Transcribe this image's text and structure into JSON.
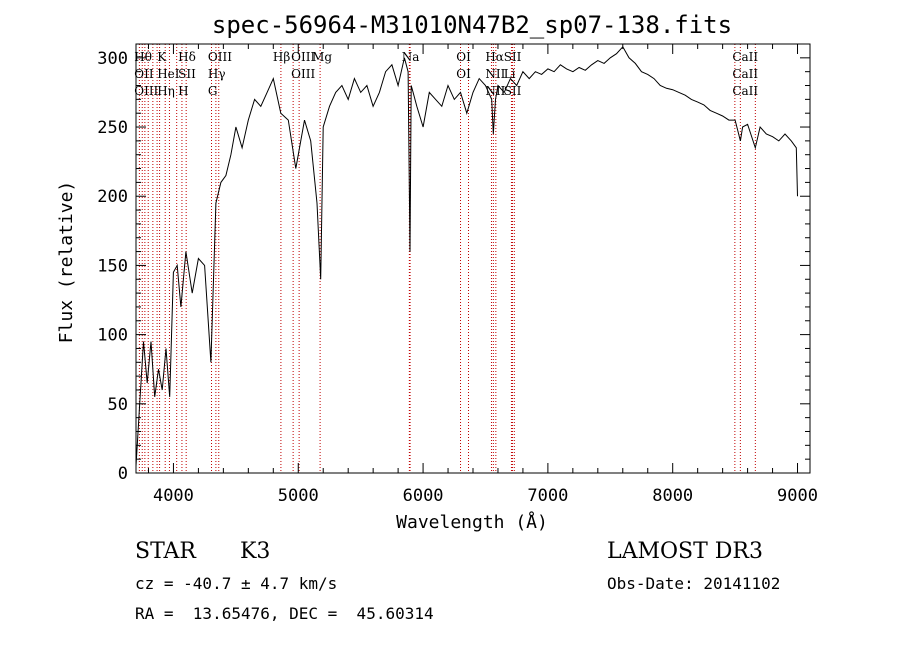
{
  "chart_data": {
    "type": "line",
    "title": "spec-56964-M31010N47B2_sp07-138.fits",
    "xlabel": "Wavelength (Å)",
    "ylabel": "Flux (relative)",
    "xlim": [
      3700,
      9100
    ],
    "ylim": [
      0,
      310
    ],
    "x_ticks": [
      4000,
      5000,
      6000,
      7000,
      8000,
      9000
    ],
    "y_ticks": [
      0,
      50,
      100,
      150,
      200,
      250,
      300
    ],
    "series": [
      {
        "name": "flux",
        "x": [
          3700,
          3730,
          3760,
          3790,
          3820,
          3850,
          3880,
          3910,
          3940,
          3970,
          4000,
          4030,
          4060,
          4100,
          4150,
          4200,
          4250,
          4300,
          4340,
          4380,
          4420,
          4460,
          4500,
          4550,
          4600,
          4650,
          4700,
          4750,
          4800,
          4860,
          4920,
          4980,
          5050,
          5100,
          5150,
          5180,
          5200,
          5250,
          5300,
          5350,
          5400,
          5450,
          5500,
          5550,
          5600,
          5650,
          5700,
          5750,
          5800,
          5850,
          5880,
          5895,
          5905,
          5920,
          5950,
          6000,
          6050,
          6100,
          6150,
          6200,
          6250,
          6300,
          6350,
          6400,
          6450,
          6500,
          6550,
          6563,
          6580,
          6600,
          6650,
          6700,
          6750,
          6800,
          6850,
          6900,
          6950,
          7000,
          7050,
          7100,
          7150,
          7200,
          7250,
          7300,
          7350,
          7400,
          7450,
          7500,
          7550,
          7600,
          7650,
          7700,
          7750,
          7800,
          7850,
          7900,
          7950,
          8000,
          8050,
          8100,
          8150,
          8200,
          8250,
          8300,
          8350,
          8400,
          8450,
          8500,
          8542,
          8560,
          8600,
          8662,
          8700,
          8750,
          8800,
          8850,
          8900,
          8950,
          8990,
          9000
        ],
        "y": [
          5,
          50,
          95,
          65,
          95,
          55,
          75,
          60,
          90,
          55,
          145,
          150,
          120,
          160,
          130,
          155,
          150,
          80,
          195,
          210,
          215,
          230,
          250,
          235,
          255,
          270,
          265,
          275,
          285,
          260,
          255,
          220,
          255,
          240,
          195,
          140,
          250,
          265,
          275,
          280,
          270,
          285,
          275,
          280,
          265,
          275,
          290,
          295,
          280,
          300,
          290,
          160,
          280,
          275,
          265,
          250,
          275,
          270,
          265,
          280,
          270,
          275,
          260,
          275,
          285,
          280,
          270,
          245,
          270,
          280,
          275,
          285,
          280,
          290,
          285,
          290,
          288,
          292,
          290,
          295,
          292,
          290,
          293,
          291,
          295,
          298,
          296,
          300,
          303,
          308,
          300,
          296,
          290,
          288,
          285,
          280,
          278,
          277,
          275,
          273,
          270,
          268,
          266,
          262,
          260,
          258,
          255,
          255,
          240,
          250,
          252,
          235,
          250,
          245,
          243,
          240,
          245,
          240,
          235,
          200
        ]
      }
    ],
    "line_groups": [
      {
        "labels": [
          "Hθ",
          "OII",
          "OIII"
        ],
        "x": 3750
      },
      {
        "labels": [
          "K",
          "HeI",
          "Hη"
        ],
        "x": 3934
      },
      {
        "labels": [
          "Hδ",
          "SII",
          "H"
        ],
        "x": 4102
      },
      {
        "labels": [
          "OIII",
          "Hγ",
          "G"
        ],
        "x": 4340
      },
      {
        "labels": [
          "Hβ"
        ],
        "x": 4861
      },
      {
        "labels": [
          "OIII",
          "OIII"
        ],
        "x": 5007
      },
      {
        "labels": [
          "Mg"
        ],
        "x": 5175
      },
      {
        "labels": [
          "Na"
        ],
        "x": 5893
      },
      {
        "labels": [
          "OI",
          "OI"
        ],
        "x": 6330
      },
      {
        "labels": [
          "Hα",
          "NII",
          "NII"
        ],
        "x": 6563
      },
      {
        "labels": [
          "SII",
          "Li",
          "SII"
        ],
        "x": 6710
      },
      {
        "labels": [
          "CaII",
          "CaII",
          "CaII"
        ],
        "x": 8542
      }
    ],
    "line_markers": [
      3727,
      3750,
      3771,
      3798,
      3835,
      3869,
      3889,
      3934,
      3968,
      4026,
      4068,
      4102,
      4305,
      4340,
      4363,
      4861,
      4959,
      5007,
      5175,
      5890,
      5896,
      6300,
      6364,
      6548,
      6563,
      6583,
      6708,
      6716,
      6731,
      8498,
      8542,
      8662
    ]
  },
  "info": {
    "object_class": "STAR",
    "subclass": "K3",
    "survey": "LAMOST DR3",
    "cz": "cz = -40.7 ± 4.7 km/s",
    "obs_date": "Obs-Date: 20141102",
    "coords": "RA =  13.65476, DEC =  45.60314"
  }
}
